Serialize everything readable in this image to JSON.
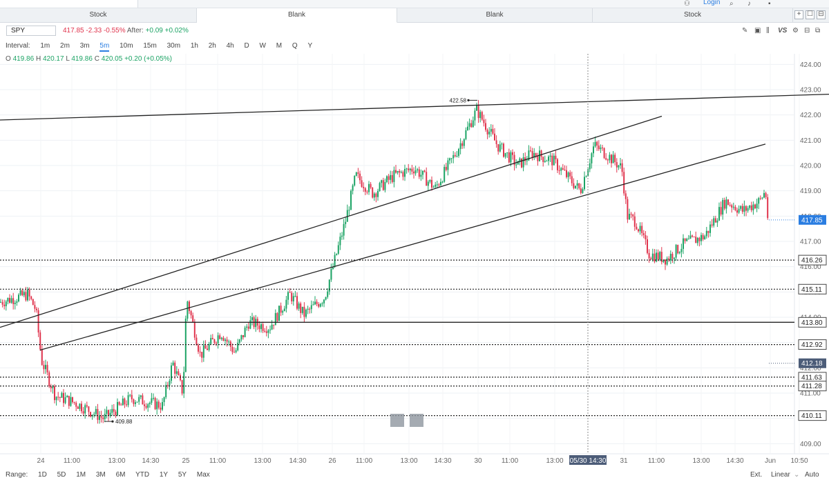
{
  "top": {
    "login": "Login",
    "icons": [
      "search-icon",
      "bell-icon",
      "settings-icon"
    ]
  },
  "tabs": [
    {
      "label": "Stock",
      "active": false
    },
    {
      "label": "Blank",
      "active": true
    },
    {
      "label": "Blank",
      "active": false
    },
    {
      "label": "Stock",
      "active": false
    }
  ],
  "tab_controls": [
    "+",
    "☐",
    "⊟"
  ],
  "quote": {
    "symbol": "SPY",
    "price": "417.85",
    "change": "-2.33",
    "change_pct": "-0.55%",
    "after_label": "After:",
    "after_change": "+0.09",
    "after_pct": "+0.02%"
  },
  "interval": {
    "label": "Interval:",
    "options": [
      "1m",
      "2m",
      "3m",
      "5m",
      "10m",
      "15m",
      "30m",
      "1h",
      "2h",
      "4h",
      "D",
      "W",
      "M",
      "Q",
      "Y"
    ],
    "selected": "5m"
  },
  "ohlc": {
    "o_label": "O",
    "o": "419.86",
    "h_label": "H",
    "h": "420.17",
    "l_label": "L",
    "l": "419.86",
    "c_label": "C",
    "c": "420.05",
    "chg": "+0.20 (+0.05%)"
  },
  "chart_data": {
    "type": "candlestick",
    "symbol": "SPY",
    "interval": "5m",
    "ylim": [
      408.6,
      424.2
    ],
    "y_ticks": [
      "409.00",
      "410.00",
      "411.00",
      "412.00",
      "413.00",
      "414.00",
      "415.00",
      "416.00",
      "417.00",
      "418.00",
      "419.00",
      "420.00",
      "421.00",
      "422.00",
      "423.00",
      "424.00"
    ],
    "x_ticks": [
      "24",
      "11:00",
      "13:00",
      "14:30",
      "25",
      "11:00",
      "13:00",
      "14:30",
      "26",
      "11:00",
      "13:00",
      "14:30",
      "30",
      "11:00",
      "13:00",
      "31",
      "11:00",
      "13:00",
      "14:30",
      "Jun",
      "10:50"
    ],
    "price_path": [
      [
        0,
        414.6
      ],
      [
        40,
        414.9
      ],
      [
        52,
        414.3
      ],
      [
        60,
        412.3
      ],
      [
        80,
        410.9
      ],
      [
        110,
        410.6
      ],
      [
        150,
        410.0
      ],
      [
        190,
        410.8
      ],
      [
        235,
        410.5
      ],
      [
        250,
        412.2
      ],
      [
        265,
        411.0
      ],
      [
        270,
        414.8
      ],
      [
        290,
        412.5
      ],
      [
        320,
        413.4
      ],
      [
        340,
        412.6
      ],
      [
        360,
        413.8
      ],
      [
        390,
        413.6
      ],
      [
        420,
        414.9
      ],
      [
        440,
        414.1
      ],
      [
        470,
        414.8
      ],
      [
        485,
        416.3
      ],
      [
        500,
        417.8
      ],
      [
        515,
        419.6
      ],
      [
        540,
        418.9
      ],
      [
        570,
        419.6
      ],
      [
        600,
        419.9
      ],
      [
        630,
        419.1
      ],
      [
        660,
        420.5
      ],
      [
        690,
        422.2
      ],
      [
        720,
        420.8
      ],
      [
        750,
        420.0
      ],
      [
        770,
        420.5
      ],
      [
        800,
        420.2
      ],
      [
        840,
        419.0
      ],
      [
        860,
        420.8
      ],
      [
        880,
        420.4
      ],
      [
        900,
        419.9
      ],
      [
        908,
        418.0
      ],
      [
        920,
        417.8
      ],
      [
        940,
        416.5
      ],
      [
        965,
        416.3
      ],
      [
        990,
        416.9
      ],
      [
        1020,
        417.2
      ],
      [
        1050,
        418.6
      ],
      [
        1075,
        418.2
      ],
      [
        1100,
        418.6
      ],
      [
        1108,
        419.0
      ],
      [
        1113,
        417.4
      ]
    ],
    "annotations": {
      "high_label": "422.58",
      "low_label": "409.88",
      "crosshair_label": "05/30 14:30"
    },
    "horizontal_levels": [
      {
        "price": 416.26,
        "label": "416.26",
        "style": "dotted"
      },
      {
        "price": 415.11,
        "label": "415.11",
        "style": "dotted"
      },
      {
        "price": 413.8,
        "label": "413.80",
        "style": "solid"
      },
      {
        "price": 412.92,
        "label": "412.92",
        "style": "dotted"
      },
      {
        "price": 411.63,
        "label": "411.63",
        "style": "dotted"
      },
      {
        "price": 411.28,
        "label": "411.28",
        "style": "dotted"
      },
      {
        "price": 410.11,
        "label": "410.11",
        "style": "dotted"
      }
    ],
    "axis_labels": [
      {
        "label": "417.85",
        "price": 417.85,
        "color": "#2a7de1"
      },
      {
        "label": "412.18",
        "price": 412.18,
        "color": "#4c5c78"
      }
    ],
    "trendlines": [
      {
        "x1": 0,
        "y1": 421.8,
        "x2": 1200,
        "y2": 422.82
      },
      {
        "x1": 0,
        "y1": 413.6,
        "x2": 958,
        "y2": 421.95
      },
      {
        "x1": 58,
        "y1": 412.7,
        "x2": 1108,
        "y2": 420.85
      }
    ],
    "colors": {
      "up": "#1ba364",
      "down": "#e0334c",
      "line": "#222222"
    }
  },
  "footer": {
    "range_label": "Range:",
    "ranges": [
      "1D",
      "5D",
      "1M",
      "3M",
      "6M",
      "YTD",
      "1Y",
      "5Y",
      "Max"
    ],
    "ext": "Ext.",
    "scale": "Linear",
    "auto": "Auto"
  }
}
